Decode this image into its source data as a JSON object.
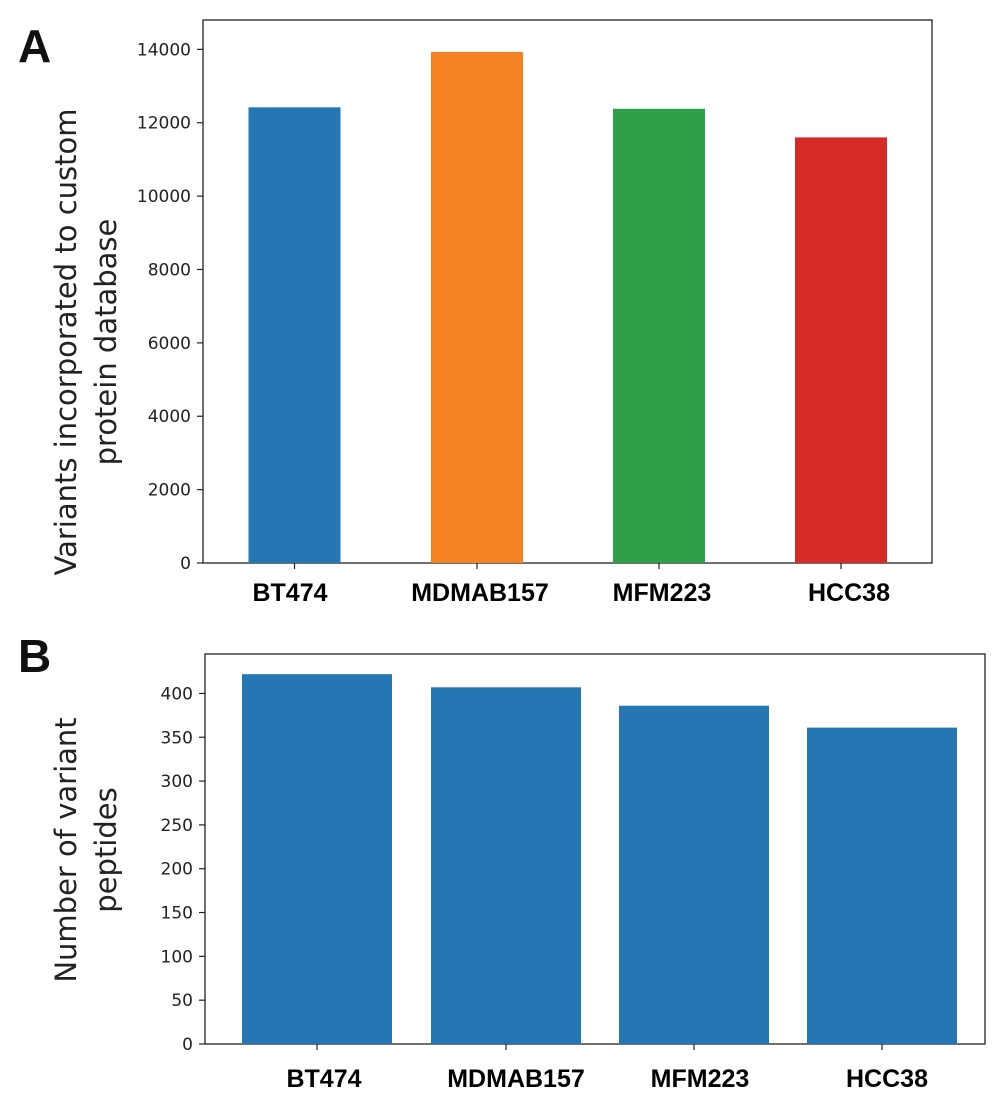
{
  "chart_data": [
    {
      "panel": "A",
      "type": "bar",
      "categories": [
        "BT474",
        "MDMAB157",
        "MFM223",
        "HCC38"
      ],
      "values": [
        12420,
        13930,
        12380,
        11600
      ],
      "colors": [
        "#2577b4",
        "#f58220",
        "#2ea04a",
        "#d62a27"
      ],
      "ylabel": [
        "Variants incorporated to custom",
        "protein database"
      ],
      "xlabel": "",
      "ylim": [
        0,
        14800
      ],
      "yticks": [
        0,
        2000,
        4000,
        6000,
        8000,
        10000,
        12000,
        14000
      ],
      "grid": false
    },
    {
      "panel": "B",
      "type": "bar",
      "categories": [
        "BT474",
        "MDMAB157",
        "MFM223",
        "HCC38"
      ],
      "values": [
        422,
        407,
        386,
        361
      ],
      "colors": [
        "#2577b4",
        "#2577b4",
        "#2577b4",
        "#2577b4"
      ],
      "ylabel": [
        "Number of variant",
        "peptides"
      ],
      "xlabel": "",
      "ylim": [
        0,
        445
      ],
      "yticks": [
        0,
        50,
        100,
        150,
        200,
        250,
        300,
        350,
        400
      ],
      "grid": false
    }
  ]
}
